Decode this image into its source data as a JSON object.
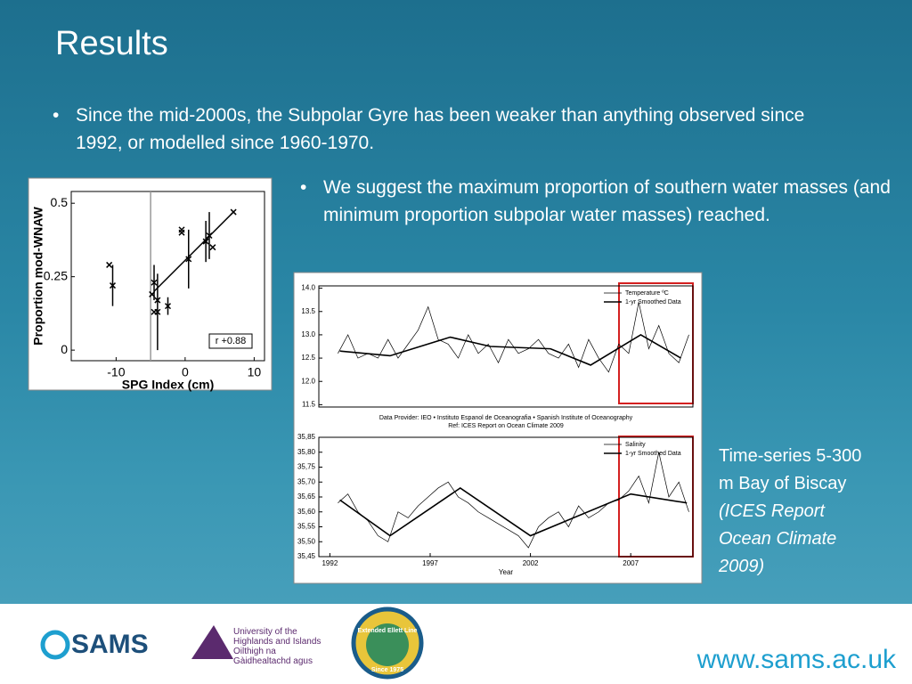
{
  "slide": {
    "title": "Results",
    "bullet_1": "Since the mid-2000s, the Subpolar Gyre has been weaker than anything observed since 1992, or modelled since 1960-1970.",
    "bullet_2": "We suggest the maximum proportion of southern water masses (and minimum proportion subpolar water masses) reached.",
    "caption": "Time-series 5-300 m Bay of Biscay",
    "caption_source": "(ICES Report Ocean Climate 2009)",
    "logo_sams": "SAMS",
    "logo_uhi_en": "University of the Highlands and Islands",
    "logo_uhi_gd": "Oilthigh na Gàidhealtachd agus nan Eilean",
    "logo_ellett": "Extended Ellett Line",
    "logo_ellett_since": "Since 1975",
    "url": "www.sams.ac.uk"
  },
  "chart_data": [
    {
      "type": "scatter",
      "x_label": "SPG Index (cm)",
      "y_label": "Proportion mod-WNAW",
      "annotation": "r +0.88",
      "x": [
        -11,
        -10.5,
        -4.5,
        -4.8,
        -4.5,
        -4,
        -4,
        -2.5,
        -0.5,
        -0.5,
        0.5,
        3,
        3.5,
        4,
        7
      ],
      "values": [
        0.29,
        0.22,
        0.23,
        0.19,
        0.13,
        0.13,
        0.17,
        0.15,
        0.41,
        0.4,
        0.31,
        0.37,
        0.39,
        0.35,
        0.47
      ],
      "errors": [
        null,
        0.07,
        0.06,
        null,
        null,
        0.13,
        null,
        0.03,
        null,
        null,
        0.1,
        0.07,
        0.08,
        null,
        null
      ],
      "fit": {
        "x": [
          -4.5,
          7
        ],
        "values": [
          0.2,
          0.47
        ]
      },
      "reference_x": -5,
      "xlim": [
        -16.5,
        11.5
      ],
      "ylim": [
        -0.036,
        0.54
      ],
      "xticks": [
        -10,
        0,
        10
      ],
      "yticks": [
        0,
        0.25,
        0.5
      ]
    },
    {
      "type": "line",
      "x_label": null,
      "series": [
        {
          "name": "Temperature ºC",
          "color": "#000000",
          "x": [
            1992.4,
            1992.9,
            1993.4,
            1993.9,
            1994.4,
            1994.9,
            1995.4,
            1995.9,
            1996.4,
            1996.9,
            1997.4,
            1997.9,
            1998.4,
            1998.9,
            1999.4,
            1999.9,
            2000.4,
            2000.9,
            2001.4,
            2001.9,
            2002.4,
            2002.9,
            2003.4,
            2003.9,
            2004.4,
            2004.9,
            2005.4,
            2005.9,
            2006.4,
            2006.9,
            2007.4,
            2007.9,
            2008.4,
            2008.9,
            2009.4,
            2009.9
          ],
          "values": [
            12.6,
            13.0,
            12.5,
            12.6,
            12.5,
            12.9,
            12.5,
            12.8,
            13.1,
            13.6,
            12.9,
            12.8,
            12.5,
            13.0,
            12.6,
            12.8,
            12.4,
            12.9,
            12.6,
            12.7,
            12.9,
            12.6,
            12.5,
            12.8,
            12.3,
            12.9,
            12.5,
            12.2,
            12.8,
            12.6,
            13.7,
            12.7,
            13.2,
            12.6,
            12.4,
            13.0
          ]
        },
        {
          "name": "1-yr Smoothed Data",
          "color": "#000000",
          "x": [
            1992.5,
            1995,
            1998,
            2000,
            2003,
            2005,
            2007.5,
            2009.5
          ],
          "values": [
            12.65,
            12.55,
            12.95,
            12.75,
            12.7,
            12.35,
            13.0,
            12.5
          ]
        }
      ],
      "xlim": [
        1991.45,
        2010.1
      ],
      "ylim": [
        11.45,
        14.05
      ],
      "yticks": [
        {
          "value": 11.5,
          "label": "11.5"
        },
        {
          "value": 12.0,
          "label": "12.0"
        },
        {
          "value": 12.5,
          "label": "12.5"
        },
        {
          "value": 13.0,
          "label": "13.0"
        },
        {
          "value": 13.5,
          "label": "13.5"
        },
        {
          "value": 14.0,
          "label": "14.0"
        }
      ],
      "note_1": "Data Provider: IEO • Instituto Espanol de Oceanografia • Spanish Institute of Oceanography",
      "note_2": "Ref: ICES Report on Ocean Climate 2009"
    },
    {
      "type": "line",
      "x_label": "Year",
      "series": [
        {
          "name": "Salinity",
          "color": "#000000",
          "x": [
            1992.4,
            1992.9,
            1993.4,
            1993.9,
            1994.4,
            1994.9,
            1995.4,
            1995.9,
            1996.4,
            1996.9,
            1997.4,
            1997.9,
            1998.4,
            1998.9,
            1999.4,
            1999.9,
            2000.4,
            2000.9,
            2001.4,
            2001.9,
            2002.4,
            2002.9,
            2003.4,
            2003.9,
            2004.4,
            2004.9,
            2005.4,
            2005.9,
            2006.4,
            2006.9,
            2007.4,
            2007.9,
            2008.4,
            2008.9,
            2009.4,
            2009.9
          ],
          "values": [
            35.63,
            35.66,
            35.6,
            35.57,
            35.52,
            35.5,
            35.6,
            35.58,
            35.62,
            35.65,
            35.68,
            35.7,
            35.65,
            35.63,
            35.6,
            35.58,
            35.56,
            35.54,
            35.52,
            35.48,
            35.55,
            35.58,
            35.6,
            35.55,
            35.62,
            35.58,
            35.6,
            35.63,
            35.64,
            35.67,
            35.72,
            35.63,
            35.8,
            35.65,
            35.7,
            35.6
          ]
        },
        {
          "name": "1-yr Smoothed Data",
          "color": "#000000",
          "x": [
            1992.5,
            1995,
            1998.5,
            2002,
            2007,
            2009.8
          ],
          "values": [
            35.64,
            35.52,
            35.68,
            35.52,
            35.66,
            35.63
          ]
        }
      ],
      "xlim": [
        1991.45,
        2010.1
      ],
      "ylim": [
        35.45,
        35.85
      ],
      "xticks": [
        1992,
        1997,
        2002,
        2007
      ],
      "yticks": [
        {
          "value": 35.45,
          "label": "35,45"
        },
        {
          "value": 35.5,
          "label": "35,50"
        },
        {
          "value": 35.55,
          "label": "35,55"
        },
        {
          "value": 35.6,
          "label": "35,60"
        },
        {
          "value": 35.65,
          "label": "35,65"
        },
        {
          "value": 35.7,
          "label": "35,70"
        },
        {
          "value": 35.75,
          "label": "35,75"
        },
        {
          "value": 35.8,
          "label": "35,80"
        },
        {
          "value": 35.85,
          "label": "35,85"
        }
      ]
    }
  ]
}
